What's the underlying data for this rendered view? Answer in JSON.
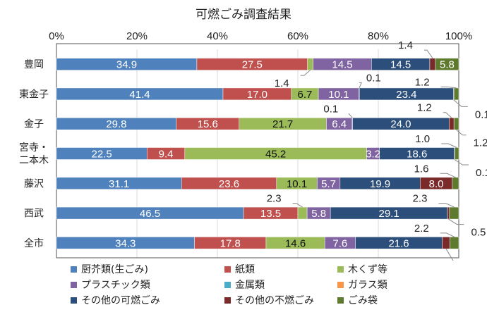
{
  "chart_data": {
    "type": "bar",
    "orientation": "horizontal",
    "stacked": "percent",
    "title": "可燃ごみ調査結果",
    "xlim": [
      0,
      100
    ],
    "xticks": [
      "0%",
      "20%",
      "40%",
      "60%",
      "80%",
      "100%"
    ],
    "grid": true,
    "legend_position": "bottom",
    "categories": [
      "豊岡",
      "東金子",
      "金子",
      "宮寺・\n二本木",
      "藤沢",
      "西武",
      "全市"
    ],
    "series": [
      {
        "name": "厨芥類(生ごみ)",
        "color": "#4f81bd",
        "values": [
          34.9,
          41.4,
          29.8,
          22.5,
          31.1,
          46.5,
          34.3
        ]
      },
      {
        "name": "紙類",
        "color": "#c0504d",
        "values": [
          27.5,
          17.0,
          15.6,
          9.4,
          23.6,
          13.5,
          17.8
        ]
      },
      {
        "name": "木くず等",
        "color": "#9bbb59",
        "values": [
          1.4,
          6.7,
          21.7,
          45.2,
          10.1,
          2.3,
          14.6
        ]
      },
      {
        "name": "プラスチック類",
        "color": "#8064a2",
        "values": [
          14.5,
          10.1,
          6.4,
          3.2,
          5.7,
          5.8,
          7.6
        ]
      },
      {
        "name": "金属類",
        "color": "#4bacc6",
        "values": [
          0,
          0.1,
          0.1,
          0,
          0,
          0,
          0
        ]
      },
      {
        "name": "ガラス類",
        "color": "#f79646",
        "values": [
          0,
          0,
          0,
          0,
          0,
          0,
          0
        ]
      },
      {
        "name": "その他の可燃ごみ",
        "color": "#2b4e7a",
        "values": [
          14.5,
          23.4,
          24.0,
          18.6,
          19.9,
          29.1,
          21.6
        ]
      },
      {
        "name": "その他の不燃ごみ",
        "color": "#7a2a28",
        "values": [
          1.4,
          0.1,
          1.2,
          0.1,
          8.0,
          0.5,
          1.9
        ]
      },
      {
        "name": "ごみ袋",
        "color": "#5e7a2e",
        "values": [
          5.8,
          1.2,
          1.2,
          1.0,
          1.6,
          2.3,
          2.2
        ]
      }
    ]
  }
}
